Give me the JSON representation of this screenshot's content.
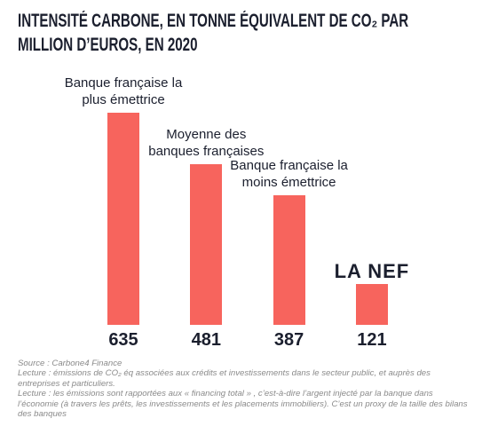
{
  "chart_data": {
    "type": "bar",
    "title": "INTENSITÉ CARBONE, EN TONNE ÉQUIVALENT DE CO₂ PAR MILLION D’EUROS,  EN 2020",
    "categories": [
      "Banque française la plus émettrice",
      "Moyenne des banques françaises",
      "Banque française la moins émettrice",
      "LA NEF"
    ],
    "values": [
      635,
      481,
      387,
      121
    ],
    "color": "#f7645d",
    "notes": [
      "Source : Carbone4 Finance",
      "Lecture : émissions de CO₂ éq associées aux crédits et investissements dans le secteur public, et auprès des entreprises et particuliers.",
      "Lecture : les émissions sont rapportées aux « financing total » , c’est-à-dire l’argent injecté par la banque dans l’économie (à travers les prêts, les investissements et les placements immobiliers). C’est un proxy de la taille des bilans des banques"
    ]
  }
}
